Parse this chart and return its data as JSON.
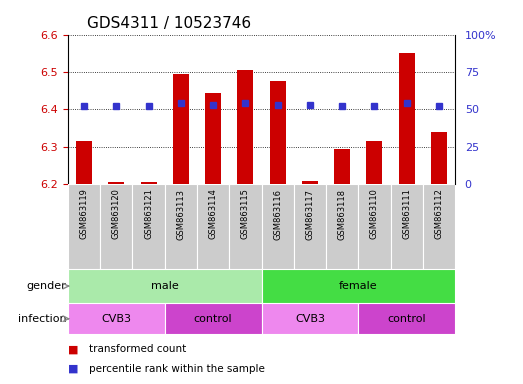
{
  "title": "GDS4311 / 10523746",
  "samples": [
    "GSM863119",
    "GSM863120",
    "GSM863121",
    "GSM863113",
    "GSM863114",
    "GSM863115",
    "GSM863116",
    "GSM863117",
    "GSM863118",
    "GSM863110",
    "GSM863111",
    "GSM863112"
  ],
  "transformed_count": [
    6.315,
    6.205,
    6.205,
    6.495,
    6.445,
    6.505,
    6.475,
    6.21,
    6.295,
    6.315,
    6.55,
    6.34
  ],
  "percentile_rank": [
    52,
    52,
    52,
    54,
    53,
    54,
    53,
    53,
    52,
    52,
    54,
    52
  ],
  "ylim_left": [
    6.2,
    6.6
  ],
  "ylim_right": [
    0,
    100
  ],
  "yticks_left": [
    6.2,
    6.3,
    6.4,
    6.5,
    6.6
  ],
  "yticks_right": [
    0,
    25,
    50,
    75,
    100
  ],
  "yticklabels_right": [
    "0",
    "25",
    "50",
    "75",
    "100%"
  ],
  "bar_color": "#cc0000",
  "dot_color": "#3333cc",
  "bar_bottom": 6.2,
  "gender_groups": [
    {
      "label": "male",
      "start": 0,
      "end": 6,
      "color": "#aaeaaa"
    },
    {
      "label": "female",
      "start": 6,
      "end": 12,
      "color": "#44dd44"
    }
  ],
  "infection_groups": [
    {
      "label": "CVB3",
      "start": 0,
      "end": 3,
      "color": "#ee88ee"
    },
    {
      "label": "control",
      "start": 3,
      "end": 6,
      "color": "#cc44cc"
    },
    {
      "label": "CVB3",
      "start": 6,
      "end": 9,
      "color": "#ee88ee"
    },
    {
      "label": "control",
      "start": 9,
      "end": 12,
      "color": "#cc44cc"
    }
  ],
  "legend_items": [
    {
      "label": "transformed count",
      "color": "#cc0000"
    },
    {
      "label": "percentile rank within the sample",
      "color": "#3333cc"
    }
  ],
  "grid_color": "black",
  "tick_color_left": "#cc0000",
  "tick_color_right": "#3333cc",
  "title_fontsize": 11,
  "axis_fontsize": 8,
  "sample_box_color": "#cccccc",
  "bar_width": 0.5
}
